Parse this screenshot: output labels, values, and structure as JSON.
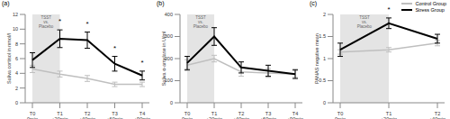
{
  "chart_data": [
    {
      "type": "line",
      "title": "(a)",
      "y_label": "Saliva cortisol in nmol/l",
      "categories": [
        "T0\n0min",
        "T1\n+20min",
        "T2\n+40min",
        "T3\n+60min",
        "T4\n+90min"
      ],
      "ylim": [
        0,
        12
      ],
      "yticks": [
        0,
        2,
        4,
        6,
        8,
        10,
        12
      ],
      "grid": false,
      "marker": "none",
      "series": [
        {
          "name": "Control Group",
          "color": "#bfbfbf",
          "values": [
            4.6,
            3.9,
            3.3,
            2.5,
            2.5
          ],
          "errors": [
            0.5,
            0.4,
            0.4,
            0.3,
            0.3
          ]
        },
        {
          "name": "Stress Group",
          "color": "#000000",
          "values": [
            5.8,
            8.7,
            8.5,
            5.3,
            3.7
          ],
          "errors": [
            1.0,
            1.2,
            1.1,
            1.0,
            0.6
          ]
        }
      ],
      "significance": [
        null,
        "*",
        "*",
        "*",
        "*"
      ],
      "shaded": {
        "from": "T0\n0min",
        "to": "T1\n+20min",
        "label": "TSST vs. Placebo"
      }
    },
    {
      "type": "line",
      "title": "(b)",
      "y_label": "Saliva α-amylase in U/ml",
      "categories": [
        "T0\n0min",
        "T1\n+20min",
        "T2\n+40min",
        "T3\n+60min",
        "T4\n+90min"
      ],
      "ylim": [
        0,
        400
      ],
      "yticks": [
        0,
        100,
        200,
        300,
        400
      ],
      "grid": false,
      "marker": "none",
      "series": [
        {
          "name": "Control Group",
          "color": "#bfbfbf",
          "values": [
            170,
            200,
            140,
            135,
            130
          ],
          "errors": [
            25,
            15,
            20,
            20,
            15
          ]
        },
        {
          "name": "Stress Group",
          "color": "#000000",
          "values": [
            180,
            300,
            160,
            145,
            130
          ],
          "errors": [
            30,
            40,
            25,
            25,
            20
          ]
        }
      ],
      "significance": [
        null,
        null,
        null,
        null,
        null
      ],
      "shaded": {
        "from": "T0\n0min",
        "to": "T1\n+20min",
        "label": "TSST vs. Placebo"
      }
    },
    {
      "type": "line",
      "title": "(c)",
      "y_label": "PANAS negative mean",
      "categories": [
        "T0\n0min",
        "T1\n+20min",
        "T2\n+40min"
      ],
      "ylim": [
        0,
        2
      ],
      "yticks": [
        0,
        0.5,
        1,
        1.5,
        2
      ],
      "grid": false,
      "marker": "none",
      "legend": "top right",
      "series": [
        {
          "name": "Control Group",
          "color": "#bfbfbf",
          "values": [
            1.15,
            1.2,
            1.35
          ],
          "errors": [
            0.05,
            0.05,
            0.06
          ]
        },
        {
          "name": "Stress Group",
          "color": "#000000",
          "values": [
            1.2,
            1.8,
            1.45
          ],
          "errors": [
            0.15,
            0.12,
            0.1
          ]
        }
      ],
      "significance": [
        null,
        "*",
        null
      ],
      "shaded": {
        "from": "T0\n0min",
        "to": "T1\n+20min",
        "label": "TSST vs. Placebo"
      }
    }
  ]
}
